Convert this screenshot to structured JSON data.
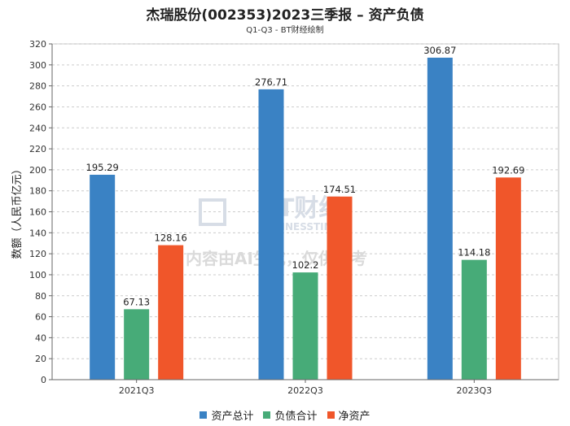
{
  "chart_data": {
    "type": "bar",
    "title": "杰瑞股份(002353)2023三季报 – 资产负债",
    "subtitle": "Q1-Q3 - BT财经绘制",
    "ylabel": "数额（人民币亿元）",
    "xlabel": "",
    "ylim": [
      0,
      320
    ],
    "yticks": [
      0,
      20,
      40,
      60,
      80,
      100,
      120,
      140,
      160,
      180,
      200,
      220,
      240,
      260,
      280,
      300,
      320
    ],
    "categories": [
      "2021Q3",
      "2022Q3",
      "2023Q3"
    ],
    "series": [
      {
        "name": "资产总计",
        "color": "#3a82c4",
        "values": [
          195.29,
          276.71,
          306.87
        ],
        "labels": [
          "195.29",
          "276.71",
          "306.87"
        ]
      },
      {
        "name": "负债合计",
        "color": "#47ab78",
        "values": [
          67.13,
          102.2,
          114.18
        ],
        "labels": [
          "67.13",
          "102.2",
          "114.18"
        ]
      },
      {
        "name": "净资产",
        "color": "#f0562a",
        "values": [
          128.16,
          174.51,
          192.69
        ],
        "labels": [
          "128.16",
          "174.51",
          "192.69"
        ]
      }
    ],
    "grid": true,
    "legend": "bottom"
  },
  "watermark": {
    "brand": "BT财经",
    "brand_en": "BUSINESSTIMES",
    "notice": "内容由AI生成，仅供参考"
  }
}
